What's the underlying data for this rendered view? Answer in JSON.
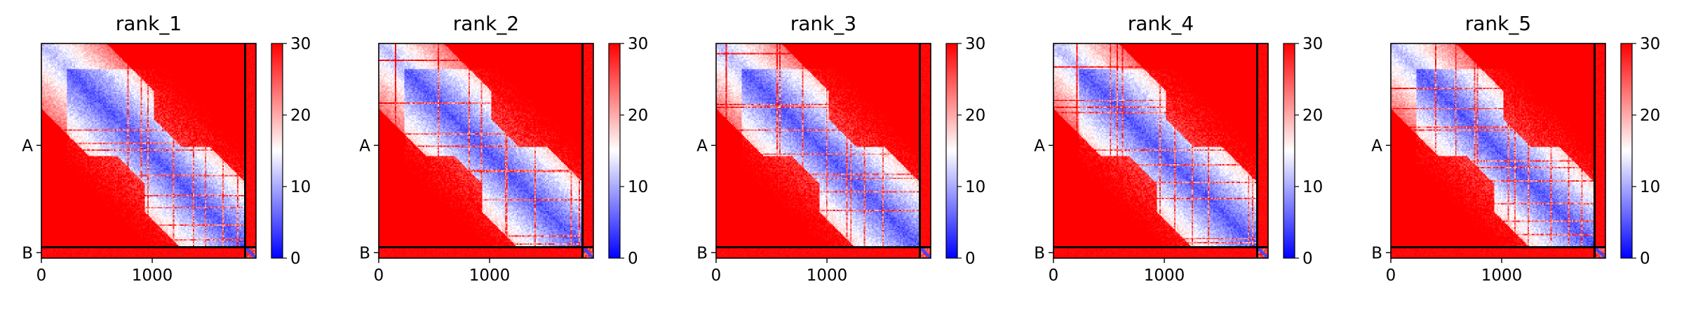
{
  "chart_data": [
    {
      "type": "heatmap",
      "title": "rank_1",
      "x_ticks": [
        0,
        1000
      ],
      "x_extent": [
        0,
        1936
      ],
      "chain_boundary": 1838,
      "y_chain_labels": [
        "A",
        "B"
      ],
      "colorbar": {
        "ticks": [
          0,
          10,
          20,
          30
        ],
        "range": [
          0,
          30
        ]
      },
      "colormap": [
        "#0000ff",
        "#ffffff",
        "#ff0000"
      ],
      "grid": false
    },
    {
      "type": "heatmap",
      "title": "rank_2",
      "x_ticks": [
        0,
        1000
      ],
      "x_extent": [
        0,
        1936
      ],
      "chain_boundary": 1838,
      "y_chain_labels": [
        "A",
        "B"
      ],
      "colorbar": {
        "ticks": [
          0,
          10,
          20,
          30
        ],
        "range": [
          0,
          30
        ]
      },
      "colormap": [
        "#0000ff",
        "#ffffff",
        "#ff0000"
      ],
      "grid": false
    },
    {
      "type": "heatmap",
      "title": "rank_3",
      "x_ticks": [
        0,
        1000
      ],
      "x_extent": [
        0,
        1936
      ],
      "chain_boundary": 1838,
      "y_chain_labels": [
        "A",
        "B"
      ],
      "colorbar": {
        "ticks": [
          0,
          10,
          20,
          30
        ],
        "range": [
          0,
          30
        ]
      },
      "colormap": [
        "#0000ff",
        "#ffffff",
        "#ff0000"
      ],
      "grid": false
    },
    {
      "type": "heatmap",
      "title": "rank_4",
      "x_ticks": [
        0,
        1000
      ],
      "x_extent": [
        0,
        1936
      ],
      "chain_boundary": 1838,
      "y_chain_labels": [
        "A",
        "B"
      ],
      "colorbar": {
        "ticks": [
          0,
          10,
          20,
          30
        ],
        "range": [
          0,
          30
        ]
      },
      "colormap": [
        "#0000ff",
        "#ffffff",
        "#ff0000"
      ],
      "grid": false
    },
    {
      "type": "heatmap",
      "title": "rank_5",
      "x_ticks": [
        0,
        1000
      ],
      "x_extent": [
        0,
        1936
      ],
      "chain_boundary": 1838,
      "y_chain_labels": [
        "A",
        "B"
      ],
      "colorbar": {
        "ticks": [
          0,
          10,
          20,
          30
        ],
        "range": [
          0,
          30
        ]
      },
      "colormap": [
        "#0000ff",
        "#ffffff",
        "#ff0000"
      ],
      "grid": false
    }
  ]
}
